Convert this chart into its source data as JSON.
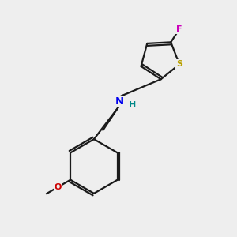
{
  "bg_color": "#eeeeee",
  "bond_color": "#1a1a1a",
  "bond_width": 1.6,
  "N_color": "#0000ee",
  "S_color": "#b8a000",
  "F_color": "#cc00bb",
  "O_color": "#cc0000",
  "H_color": "#008888",
  "figsize": [
    3.0,
    3.0
  ],
  "dpi": 100,
  "xlim": [
    0,
    9
  ],
  "ylim": [
    0,
    9
  ]
}
